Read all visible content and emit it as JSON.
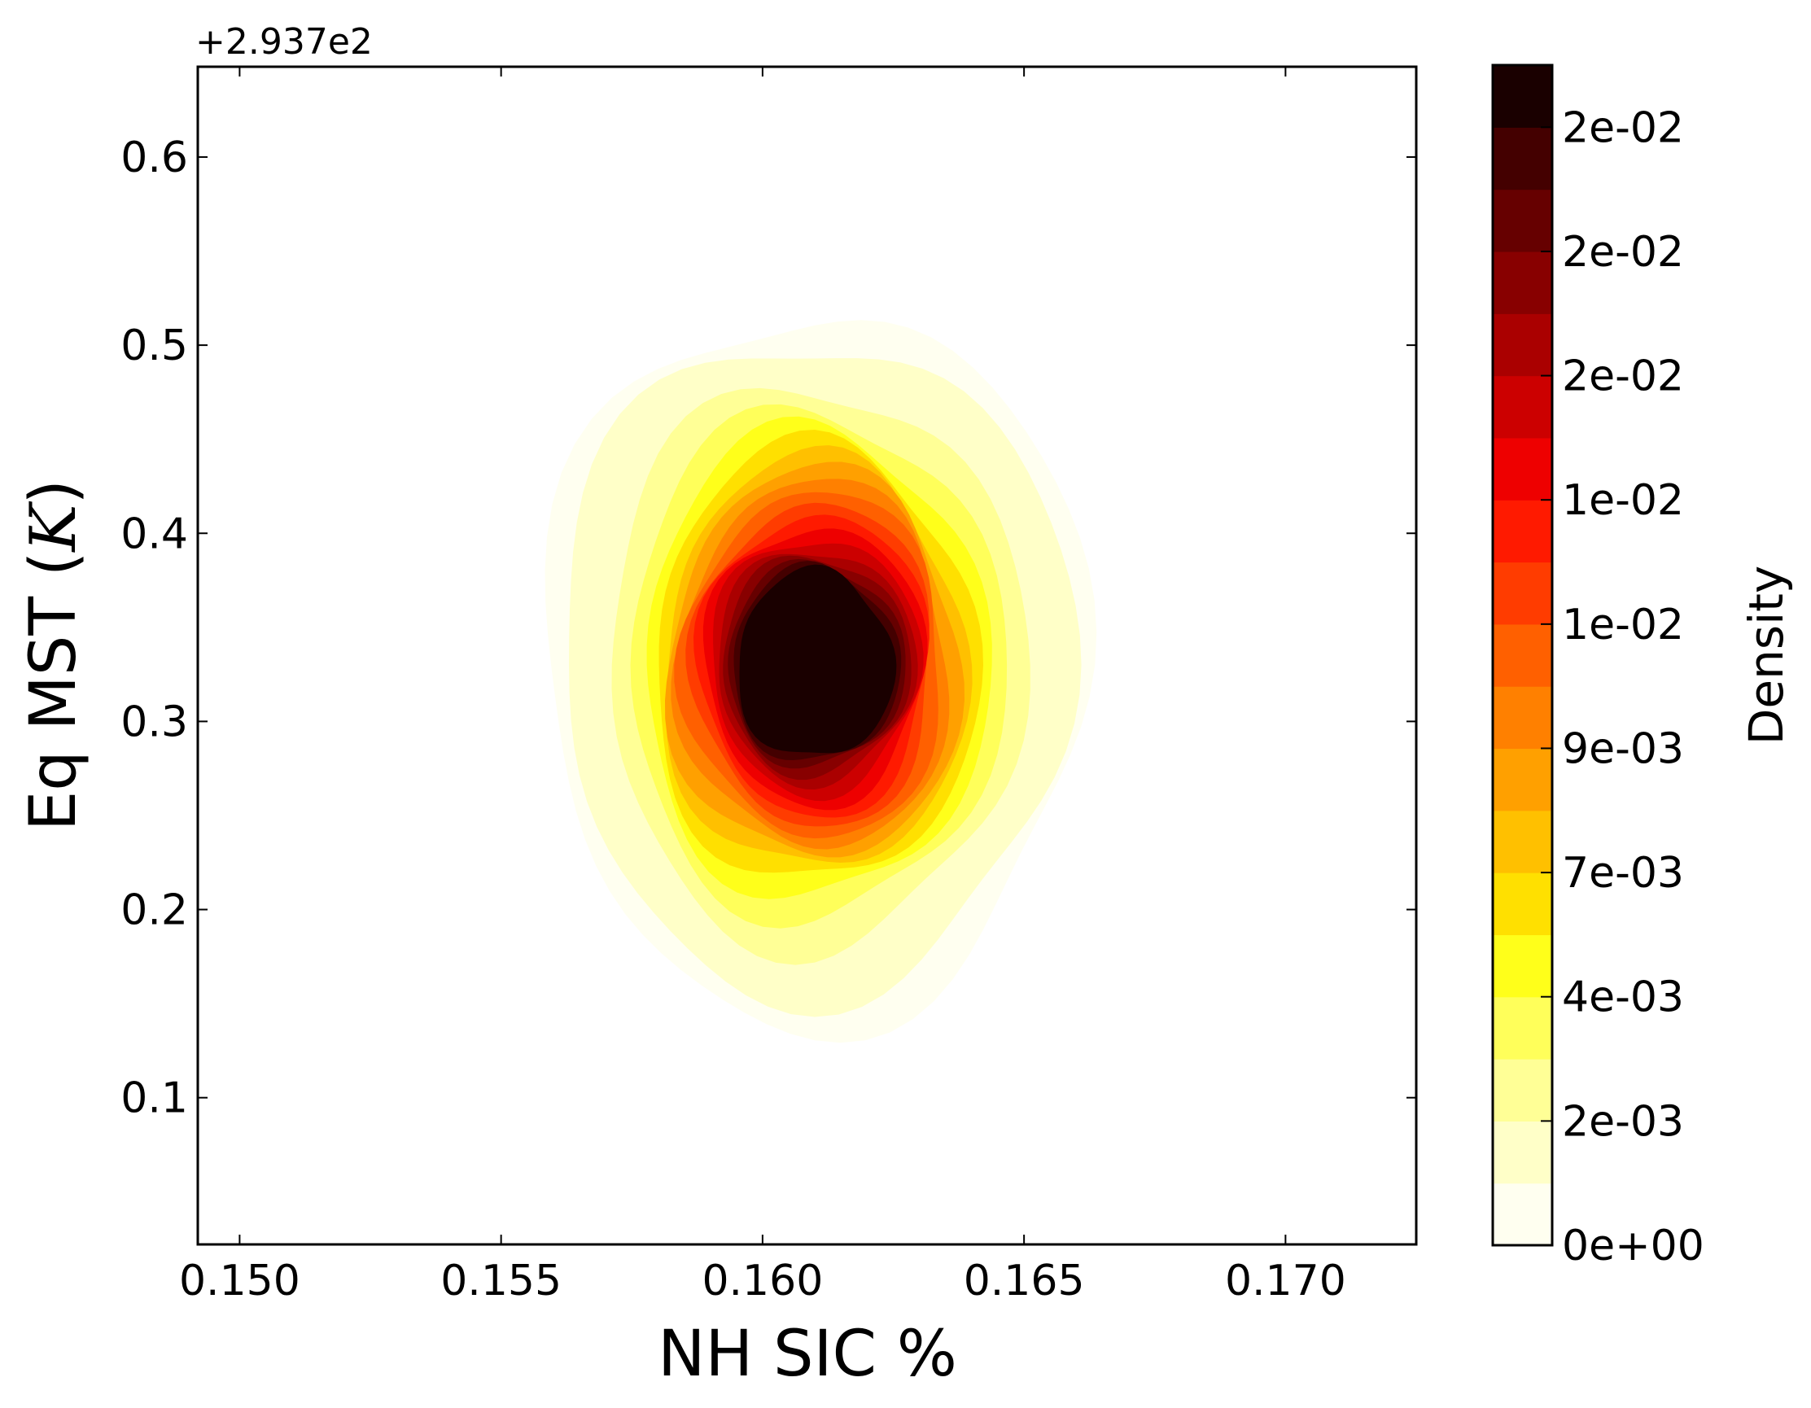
{
  "chart_data": {
    "type": "heatmap",
    "subtype": "filled-contour",
    "title": "",
    "xlabel": "NH SIC %",
    "ylabel": "Eq MST (K)",
    "ylabel_parts": {
      "before": "Eq MST (",
      "symbol": "K",
      "after": ")"
    },
    "y_offset_label": "+2.937e2",
    "xlim": [
      0.1492,
      0.1725
    ],
    "ylim": [
      0.022,
      0.648
    ],
    "x_ticks": [
      0.15,
      0.155,
      0.16,
      0.165,
      0.17
    ],
    "x_tick_labels": [
      "0.150",
      "0.155",
      "0.160",
      "0.165",
      "0.170"
    ],
    "y_ticks": [
      0.1,
      0.2,
      0.3,
      0.4,
      0.5,
      0.6
    ],
    "y_tick_labels": [
      "0.1",
      "0.2",
      "0.3",
      "0.4",
      "0.5",
      "0.6"
    ],
    "colormap": "hot_r",
    "grid": false,
    "density_peak": {
      "x": 0.161,
      "y": 0.33
    },
    "contour_levels": [
      {
        "level": 0,
        "color": "#fffff0",
        "x_halfwidth": 0.0052,
        "y_halfwidth": 0.19
      },
      {
        "level": 1,
        "color": "#ffffc8",
        "x_halfwidth": 0.0049,
        "y_halfwidth": 0.175
      },
      {
        "level": 2,
        "color": "#ffff96",
        "x_halfwidth": 0.004,
        "y_halfwidth": 0.15
      },
      {
        "level": 3,
        "color": "#ffff5a",
        "x_halfwidth": 0.0036,
        "y_halfwidth": 0.135
      },
      {
        "level": 4,
        "color": "#ffff1a",
        "x_halfwidth": 0.0033,
        "y_halfwidth": 0.125
      },
      {
        "level": 5,
        "color": "#ffe000",
        "x_halfwidth": 0.0031,
        "y_halfwidth": 0.117
      },
      {
        "level": 6,
        "color": "#ffc000",
        "x_halfwidth": 0.0029,
        "y_halfwidth": 0.11
      },
      {
        "level": 7,
        "color": "#ffa000",
        "x_halfwidth": 0.0028,
        "y_halfwidth": 0.104
      },
      {
        "level": 8,
        "color": "#ff8000",
        "x_halfwidth": 0.0026,
        "y_halfwidth": 0.098
      },
      {
        "level": 9,
        "color": "#ff6000",
        "x_halfwidth": 0.0025,
        "y_halfwidth": 0.092
      },
      {
        "level": 10,
        "color": "#ff3c00",
        "x_halfwidth": 0.0023,
        "y_halfwidth": 0.086
      },
      {
        "level": 11,
        "color": "#ff1a00",
        "x_halfwidth": 0.0022,
        "y_halfwidth": 0.08
      },
      {
        "level": 12,
        "color": "#ee0000",
        "x_halfwidth": 0.0021,
        "y_halfwidth": 0.074
      },
      {
        "level": 13,
        "color": "#cc0000",
        "x_halfwidth": 0.002,
        "y_halfwidth": 0.068
      },
      {
        "level": 14,
        "color": "#aa0000",
        "x_halfwidth": 0.0019,
        "y_halfwidth": 0.062
      },
      {
        "level": 15,
        "color": "#880000",
        "x_halfwidth": 0.0018,
        "y_halfwidth": 0.058
      },
      {
        "level": 16,
        "color": "#660000",
        "x_halfwidth": 0.0017,
        "y_halfwidth": 0.054
      },
      {
        "level": 17,
        "color": "#440000",
        "x_halfwidth": 0.0016,
        "y_halfwidth": 0.052
      },
      {
        "level": 18,
        "color": "#1a0000",
        "x_halfwidth": 0.0015,
        "y_halfwidth": 0.05
      }
    ],
    "colorbar": {
      "label": "Density",
      "colors": [
        "#fffff0",
        "#ffffc8",
        "#ffff96",
        "#ffff5a",
        "#ffff1a",
        "#ffe000",
        "#ffc000",
        "#ffa000",
        "#ff8000",
        "#ff6000",
        "#ff3c00",
        "#ff1a00",
        "#ee0000",
        "#cc0000",
        "#aa0000",
        "#880000",
        "#660000",
        "#440000",
        "#1a0000"
      ],
      "tick_labels": [
        "0e+00",
        "2e-03",
        "4e-03",
        "7e-03",
        "9e-03",
        "1e-02",
        "1e-02",
        "2e-02",
        "2e-02",
        "2e-02"
      ]
    }
  }
}
